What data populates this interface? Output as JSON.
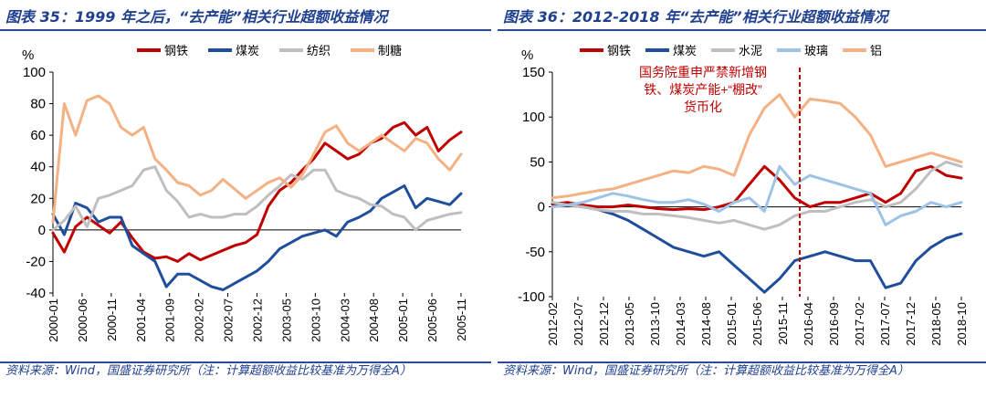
{
  "charts": [
    {
      "title": "图表 35：1999 年之后，“去产能”相关行业超额收益情况",
      "source": "资料来源：Wind，国盛证券研究所（注：计算超额收益比较基准为万得全A）",
      "unit_label": "%",
      "legend": [
        {
          "name": "钢铁",
          "color": "#c00000"
        },
        {
          "name": "煤炭",
          "color": "#1f4e9c"
        },
        {
          "name": "纺织",
          "color": "#bfbfbf"
        },
        {
          "name": "制糖",
          "color": "#f4b183"
        }
      ]
    },
    {
      "title": "图表 36：2012-2018 年“去产能”相关行业超额收益情况",
      "source": "资料来源：Wind，国盛证券研究所（注：计算超额收益比较基准为万得全A）",
      "unit_label": "%",
      "legend": [
        {
          "name": "钢铁",
          "color": "#c00000"
        },
        {
          "name": "煤炭",
          "color": "#1f4e9c"
        },
        {
          "name": "水泥",
          "color": "#bfbfbf"
        },
        {
          "name": "玻璃",
          "color": "#9dc3e6"
        },
        {
          "name": "铝",
          "color": "#f4b183"
        }
      ],
      "annotation": "国务院重申严禁新增钢铁、煤炭产能+“棚改”货币化",
      "annotation_lines": [
        "国务院重申严禁新增钢",
        "铁、煤炭产能+“棚改”",
        "货币化"
      ]
    }
  ],
  "chart_data": [
    {
      "type": "line",
      "title": "",
      "xlabel": "",
      "ylabel": "%",
      "ylim": [
        -40,
        100
      ],
      "yticks": [
        -40,
        -20,
        0,
        20,
        40,
        60,
        80,
        100
      ],
      "x": [
        "2000-01",
        "2000-03",
        "2000-05",
        "2000-07",
        "2000-09",
        "2000-11",
        "2001-01",
        "2001-03",
        "2001-05",
        "2001-07",
        "2001-09",
        "2001-11",
        "2002-01",
        "2002-03",
        "2002-05",
        "2002-07",
        "2002-09",
        "2002-11",
        "2003-01",
        "2003-03",
        "2003-05",
        "2003-07",
        "2003-09",
        "2003-11",
        "2004-01",
        "2004-03",
        "2004-05",
        "2004-07",
        "2004-09",
        "2004-11",
        "2005-01",
        "2005-03",
        "2005-05",
        "2005-07",
        "2005-09",
        "2005-11",
        "2006-01"
      ],
      "xtick_labels": [
        "2000-01",
        "2000-06",
        "2000-11",
        "2001-04",
        "2001-09",
        "2002-02",
        "2002-07",
        "2002-12",
        "2003-05",
        "2003-10",
        "2004-03",
        "2004-08",
        "2005-01",
        "2005-06",
        "2005-11"
      ],
      "series": [
        {
          "name": "钢铁",
          "color": "#c00000",
          "values": [
            -2,
            -14,
            2,
            8,
            3,
            -2,
            5,
            -5,
            -14,
            -18,
            -17,
            -20,
            -15,
            -19,
            -16,
            -13,
            -10,
            -8,
            -3,
            15,
            25,
            30,
            38,
            45,
            55,
            50,
            45,
            48,
            55,
            58,
            65,
            68,
            60,
            65,
            50,
            57,
            62
          ]
        },
        {
          "name": "煤炭",
          "color": "#1f4e9c",
          "values": [
            10,
            -3,
            17,
            14,
            5,
            8,
            8,
            -10,
            -15,
            -20,
            -36,
            -28,
            -28,
            -32,
            -36,
            -38,
            -34,
            -30,
            -26,
            -20,
            -12,
            -8,
            -4,
            -2,
            0,
            -4,
            5,
            8,
            12,
            20,
            24,
            28,
            14,
            20,
            18,
            16,
            23
          ]
        },
        {
          "name": "纺织",
          "color": "#bfbfbf",
          "values": [
            0,
            6,
            15,
            2,
            20,
            22,
            25,
            28,
            38,
            40,
            25,
            18,
            8,
            10,
            8,
            8,
            10,
            10,
            15,
            22,
            28,
            35,
            32,
            38,
            38,
            25,
            22,
            20,
            16,
            15,
            10,
            8,
            0,
            6,
            8,
            10,
            11
          ]
        },
        {
          "name": "制糖",
          "color": "#f4b183",
          "values": [
            5,
            80,
            60,
            82,
            85,
            80,
            65,
            60,
            65,
            45,
            38,
            30,
            28,
            22,
            25,
            32,
            26,
            20,
            25,
            30,
            33,
            27,
            35,
            48,
            62,
            66,
            55,
            50,
            55,
            60,
            55,
            50,
            58,
            55,
            45,
            38,
            48
          ]
        }
      ]
    },
    {
      "type": "line",
      "title": "",
      "xlabel": "",
      "ylabel": "%",
      "ylim": [
        -100,
        150
      ],
      "yticks": [
        -100,
        -50,
        0,
        50,
        100,
        150
      ],
      "x": [
        "2012-02",
        "2012-05",
        "2012-08",
        "2012-11",
        "2013-02",
        "2013-05",
        "2013-08",
        "2013-11",
        "2014-02",
        "2014-05",
        "2014-08",
        "2014-11",
        "2015-02",
        "2015-05",
        "2015-08",
        "2015-11",
        "2016-02",
        "2016-05",
        "2016-08",
        "2016-11",
        "2017-02",
        "2017-05",
        "2017-08",
        "2017-11",
        "2018-02",
        "2018-05",
        "2018-08",
        "2018-11"
      ],
      "xtick_labels": [
        "2012-02",
        "2012-07",
        "2012-12",
        "2013-05",
        "2013-10",
        "2014-03",
        "2014-08",
        "2015-01",
        "2015-06",
        "2015-11",
        "2016-04",
        "2016-09",
        "2017-02",
        "2017-07",
        "2017-12",
        "2018-05",
        "2018-10"
      ],
      "vline_at": "2016-03",
      "series": [
        {
          "name": "钢铁",
          "color": "#c00000",
          "values": [
            3,
            5,
            2,
            0,
            0,
            2,
            0,
            -2,
            -3,
            -2,
            -3,
            0,
            5,
            25,
            45,
            30,
            10,
            0,
            5,
            5,
            10,
            15,
            5,
            15,
            40,
            45,
            35,
            32
          ]
        },
        {
          "name": "煤炭",
          "color": "#1f4e9c",
          "values": [
            5,
            2,
            0,
            -3,
            -8,
            -15,
            -25,
            -35,
            -45,
            -50,
            -55,
            -50,
            -65,
            -80,
            -95,
            -80,
            -60,
            -55,
            -50,
            -55,
            -60,
            -60,
            -90,
            -85,
            -60,
            -45,
            -35,
            -30
          ]
        },
        {
          "name": "水泥",
          "color": "#bfbfbf",
          "values": [
            5,
            2,
            0,
            -3,
            -5,
            -5,
            -8,
            -8,
            -10,
            -12,
            -15,
            -18,
            -15,
            -20,
            -25,
            -20,
            -10,
            -5,
            -5,
            0,
            5,
            8,
            0,
            5,
            20,
            40,
            50,
            45
          ]
        },
        {
          "name": "玻璃",
          "color": "#9dc3e6",
          "values": [
            0,
            2,
            5,
            10,
            15,
            12,
            8,
            5,
            5,
            8,
            3,
            -5,
            5,
            10,
            -5,
            45,
            25,
            35,
            30,
            25,
            20,
            15,
            -20,
            -10,
            -5,
            5,
            0,
            5
          ]
        },
        {
          "name": "铝",
          "color": "#f4b183",
          "values": [
            10,
            12,
            15,
            18,
            20,
            25,
            30,
            35,
            40,
            38,
            45,
            42,
            35,
            80,
            110,
            125,
            100,
            120,
            118,
            115,
            100,
            80,
            45,
            50,
            55,
            60,
            55,
            50
          ]
        }
      ]
    }
  ]
}
